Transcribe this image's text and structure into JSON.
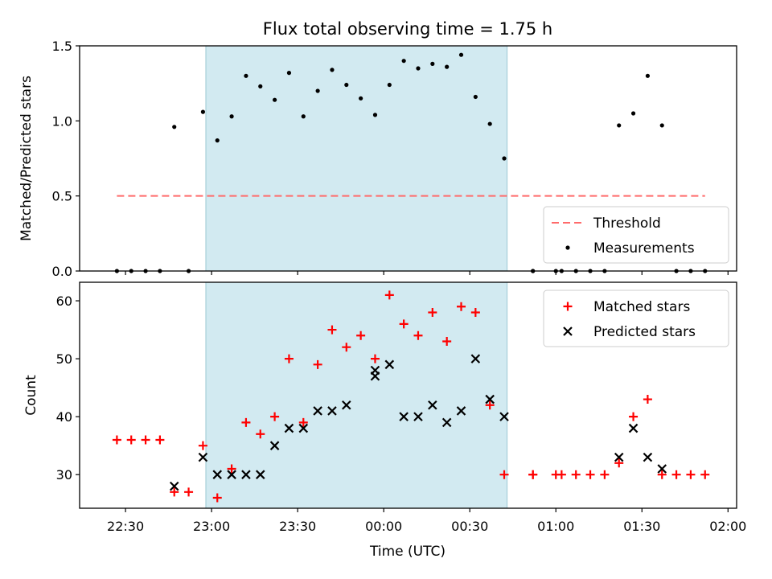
{
  "chart_data": {
    "title": "Flux total observing time = 1.75 h",
    "xlabel": "Time (UTC)",
    "x_ticks": [
      "22:30",
      "23:00",
      "23:30",
      "00:00",
      "00:30",
      "01:00",
      "01:30",
      "02:00"
    ],
    "x_range": [
      "22:14",
      "02:03"
    ],
    "shaded_interval": [
      "22:58",
      "00:43"
    ],
    "colors": {
      "shade": "#add8e6",
      "threshold": "#ff6b6b",
      "matched": "#ff0000",
      "predicted": "#000000",
      "measurements": "#000000"
    },
    "panels": [
      {
        "type": "scatter",
        "ylabel": "Matched/Predicted stars",
        "ylim": [
          0,
          1.5
        ],
        "yticks": [
          "0.0",
          "0.5",
          "1.0",
          "1.5"
        ],
        "legend": {
          "position": "lower right",
          "entries": [
            "Threshold",
            "Measurements"
          ]
        },
        "series": [
          {
            "name": "Threshold",
            "style": "dashed-line",
            "points": [
              [
                "22:27",
                0.5
              ],
              [
                "01:52",
                0.5
              ]
            ]
          },
          {
            "name": "Measurements",
            "style": "dot",
            "points": [
              [
                "22:27",
                0.0
              ],
              [
                "22:32",
                0.0
              ],
              [
                "22:37",
                0.0
              ],
              [
                "22:42",
                0.0
              ],
              [
                "22:47",
                0.96
              ],
              [
                "22:52",
                0.0
              ],
              [
                "22:57",
                1.06
              ],
              [
                "23:02",
                0.87
              ],
              [
                "23:07",
                1.03
              ],
              [
                "23:12",
                1.3
              ],
              [
                "23:17",
                1.23
              ],
              [
                "23:22",
                1.14
              ],
              [
                "23:27",
                1.32
              ],
              [
                "23:32",
                1.03
              ],
              [
                "23:37",
                1.2
              ],
              [
                "23:42",
                1.34
              ],
              [
                "23:47",
                1.24
              ],
              [
                "23:52",
                1.15
              ],
              [
                "23:57",
                1.04
              ],
              [
                "00:02",
                1.24
              ],
              [
                "00:07",
                1.4
              ],
              [
                "00:12",
                1.35
              ],
              [
                "00:17",
                1.38
              ],
              [
                "00:22",
                1.36
              ],
              [
                "00:27",
                1.44
              ],
              [
                "00:32",
                1.16
              ],
              [
                "00:37",
                0.98
              ],
              [
                "00:42",
                0.75
              ],
              [
                "00:52",
                0.0
              ],
              [
                "00:52",
                0.0
              ],
              [
                "01:00",
                0.0
              ],
              [
                "01:02",
                0.0
              ],
              [
                "01:07",
                0.0
              ],
              [
                "01:12",
                0.0
              ],
              [
                "01:17",
                0.0
              ],
              [
                "01:22",
                0.97
              ],
              [
                "01:27",
                1.05
              ],
              [
                "01:32",
                1.3
              ],
              [
                "01:37",
                0.97
              ],
              [
                "01:42",
                0.0
              ],
              [
                "01:47",
                0.0
              ],
              [
                "01:52",
                0.0
              ]
            ]
          }
        ]
      },
      {
        "type": "scatter",
        "ylabel": "Count",
        "ylim": [
          24.2,
          63.2
        ],
        "yticks": [
          "30",
          "40",
          "50",
          "60"
        ],
        "legend": {
          "position": "upper right",
          "entries": [
            "Matched stars",
            "Predicted stars"
          ]
        },
        "series": [
          {
            "name": "Matched stars",
            "style": "plus",
            "points": [
              [
                "22:27",
                36
              ],
              [
                "22:32",
                36
              ],
              [
                "22:37",
                36
              ],
              [
                "22:42",
                36
              ],
              [
                "22:47",
                27
              ],
              [
                "22:52",
                27
              ],
              [
                "22:57",
                35
              ],
              [
                "23:02",
                26
              ],
              [
                "23:07",
                31
              ],
              [
                "23:12",
                39
              ],
              [
                "23:17",
                37
              ],
              [
                "23:22",
                40
              ],
              [
                "23:27",
                50
              ],
              [
                "23:32",
                39
              ],
              [
                "23:37",
                49
              ],
              [
                "23:42",
                55
              ],
              [
                "23:47",
                52
              ],
              [
                "23:52",
                54
              ],
              [
                "23:57",
                50
              ],
              [
                "00:02",
                61
              ],
              [
                "00:07",
                56
              ],
              [
                "00:12",
                54
              ],
              [
                "00:17",
                58
              ],
              [
                "00:22",
                53
              ],
              [
                "00:27",
                59
              ],
              [
                "00:32",
                58
              ],
              [
                "00:37",
                42
              ],
              [
                "00:42",
                30
              ],
              [
                "00:52",
                30
              ],
              [
                "00:52",
                30
              ],
              [
                "01:00",
                30
              ],
              [
                "01:02",
                30
              ],
              [
                "01:07",
                30
              ],
              [
                "01:12",
                30
              ],
              [
                "01:17",
                30
              ],
              [
                "01:22",
                32
              ],
              [
                "01:27",
                40
              ],
              [
                "01:32",
                43
              ],
              [
                "01:37",
                30
              ],
              [
                "01:42",
                30
              ],
              [
                "01:47",
                30
              ],
              [
                "01:52",
                30
              ]
            ]
          },
          {
            "name": "Predicted stars",
            "style": "x",
            "points": [
              [
                "22:47",
                28
              ],
              [
                "22:57",
                33
              ],
              [
                "23:02",
                30
              ],
              [
                "23:07",
                30
              ],
              [
                "23:12",
                30
              ],
              [
                "23:17",
                30
              ],
              [
                "23:22",
                35
              ],
              [
                "23:27",
                38
              ],
              [
                "23:32",
                38
              ],
              [
                "23:37",
                41
              ],
              [
                "23:42",
                41
              ],
              [
                "23:47",
                42
              ],
              [
                "23:57",
                47
              ],
              [
                "23:57",
                48
              ],
              [
                "00:02",
                49
              ],
              [
                "00:07",
                40
              ],
              [
                "00:12",
                40
              ],
              [
                "00:17",
                42
              ],
              [
                "00:22",
                39
              ],
              [
                "00:27",
                41
              ],
              [
                "00:32",
                50
              ],
              [
                "00:37",
                43
              ],
              [
                "00:42",
                40
              ],
              [
                "01:22",
                33
              ],
              [
                "01:27",
                38
              ],
              [
                "01:32",
                33
              ],
              [
                "01:37",
                31
              ]
            ]
          }
        ]
      }
    ]
  }
}
